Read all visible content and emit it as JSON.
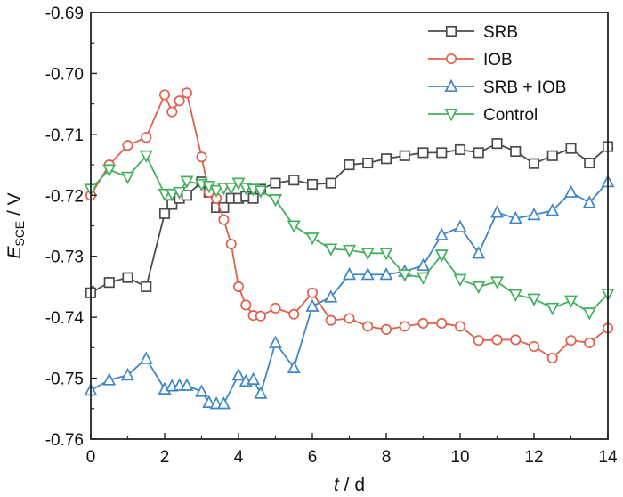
{
  "chart_data": {
    "type": "line",
    "xlabel": {
      "prefix": "t",
      "suffix": " / d"
    },
    "ylabel": {
      "prefix": "E",
      "subscript": "SCE",
      "suffix": " / V"
    },
    "xlim": [
      0,
      14
    ],
    "ylim": [
      -0.76,
      -0.69
    ],
    "xticks": [
      0,
      2,
      4,
      6,
      8,
      10,
      12,
      14
    ],
    "yticks": [
      -0.69,
      -0.7,
      -0.71,
      -0.72,
      -0.73,
      -0.74,
      -0.75,
      -0.76
    ],
    "xtick_labels": [
      "0",
      "2",
      "4",
      "6",
      "8",
      "10",
      "12",
      "14"
    ],
    "ytick_labels": [
      "-0.69",
      "-0.70",
      "-0.71",
      "-0.72",
      "-0.73",
      "-0.74",
      "-0.75",
      "-0.76"
    ],
    "grid": false,
    "legend": {
      "placement": "top-right"
    },
    "series": [
      {
        "name": "SRB",
        "color": "#4b4b4b",
        "marker": "square",
        "x": [
          0,
          0.5,
          1.0,
          1.5,
          2.0,
          2.2,
          2.4,
          2.6,
          3.0,
          3.2,
          3.4,
          3.6,
          3.8,
          4.0,
          4.2,
          4.4,
          4.6,
          5.0,
          5.5,
          6.0,
          6.5,
          7.0,
          7.5,
          8.0,
          8.5,
          9.0,
          9.5,
          10.0,
          10.5,
          11.0,
          11.5,
          12.0,
          12.5,
          13.0,
          13.5,
          14.0
        ],
        "y": [
          -0.736,
          -0.7343,
          -0.7335,
          -0.735,
          -0.723,
          -0.7215,
          -0.7205,
          -0.72,
          -0.7178,
          -0.7195,
          -0.722,
          -0.722,
          -0.7205,
          -0.7205,
          -0.7202,
          -0.7205,
          -0.719,
          -0.718,
          -0.7175,
          -0.7182,
          -0.718,
          -0.715,
          -0.7147,
          -0.714,
          -0.7135,
          -0.713,
          -0.713,
          -0.7125,
          -0.713,
          -0.7115,
          -0.7128,
          -0.7148,
          -0.7135,
          -0.7123,
          -0.7147,
          -0.712
        ]
      },
      {
        "name": "IOB",
        "color": "#e0604c",
        "marker": "circle",
        "x": [
          0,
          0.5,
          1.0,
          1.5,
          2.0,
          2.2,
          2.4,
          2.6,
          3.0,
          3.2,
          3.4,
          3.6,
          3.8,
          4.0,
          4.2,
          4.4,
          4.6,
          5.0,
          5.5,
          6.0,
          6.5,
          7.0,
          7.5,
          8.0,
          8.5,
          9.0,
          9.5,
          10.0,
          10.5,
          11.0,
          11.5,
          12.0,
          12.5,
          13.0,
          13.5,
          14.0
        ],
        "y": [
          -0.72,
          -0.715,
          -0.7118,
          -0.7105,
          -0.7035,
          -0.7063,
          -0.7045,
          -0.7032,
          -0.7137,
          -0.7195,
          -0.7205,
          -0.724,
          -0.728,
          -0.735,
          -0.738,
          -0.7397,
          -0.7398,
          -0.7385,
          -0.7395,
          -0.736,
          -0.7405,
          -0.7402,
          -0.7415,
          -0.742,
          -0.7415,
          -0.741,
          -0.741,
          -0.7415,
          -0.7438,
          -0.7437,
          -0.7437,
          -0.7448,
          -0.7467,
          -0.7438,
          -0.7442,
          -0.7418
        ]
      },
      {
        "name": "SRB + IOB",
        "color": "#3f86c6",
        "marker": "triangle-up",
        "x": [
          0,
          0.5,
          1.0,
          1.5,
          2.0,
          2.2,
          2.4,
          2.6,
          3.0,
          3.2,
          3.4,
          3.6,
          4.0,
          4.2,
          4.4,
          4.6,
          5.0,
          5.5,
          6.0,
          6.5,
          7.0,
          7.5,
          8.0,
          8.5,
          9.0,
          9.5,
          10.0,
          10.5,
          11.0,
          11.5,
          12.0,
          12.5,
          13.0,
          13.5,
          14.0
        ],
        "y": [
          -0.752,
          -0.7503,
          -0.7495,
          -0.7468,
          -0.7518,
          -0.7513,
          -0.7512,
          -0.7512,
          -0.7522,
          -0.754,
          -0.7542,
          -0.7542,
          -0.7495,
          -0.7505,
          -0.7502,
          -0.7525,
          -0.7442,
          -0.7483,
          -0.7382,
          -0.7367,
          -0.733,
          -0.733,
          -0.733,
          -0.7325,
          -0.7315,
          -0.7265,
          -0.7252,
          -0.7295,
          -0.7228,
          -0.7238,
          -0.7232,
          -0.7225,
          -0.7195,
          -0.7212,
          -0.7178
        ]
      },
      {
        "name": "Control",
        "color": "#44b05d",
        "marker": "triangle-down",
        "x": [
          0,
          0.5,
          1.0,
          1.5,
          2.0,
          2.2,
          2.4,
          2.6,
          3.0,
          3.2,
          3.4,
          3.6,
          3.8,
          4.0,
          4.2,
          4.4,
          4.6,
          5.0,
          5.5,
          6.0,
          6.5,
          7.0,
          7.5,
          8.0,
          8.5,
          9.0,
          9.5,
          10.0,
          10.5,
          11.0,
          11.5,
          12.0,
          12.5,
          13.0,
          13.5,
          14.0
        ],
        "y": [
          -0.719,
          -0.7158,
          -0.717,
          -0.7135,
          -0.7198,
          -0.7198,
          -0.7195,
          -0.7177,
          -0.7182,
          -0.7185,
          -0.7192,
          -0.7188,
          -0.7188,
          -0.718,
          -0.7188,
          -0.719,
          -0.7193,
          -0.7207,
          -0.725,
          -0.727,
          -0.7288,
          -0.729,
          -0.7295,
          -0.7295,
          -0.733,
          -0.7335,
          -0.7298,
          -0.7338,
          -0.735,
          -0.7342,
          -0.7363,
          -0.737,
          -0.7385,
          -0.7373,
          -0.7393,
          -0.7362
        ]
      }
    ]
  }
}
